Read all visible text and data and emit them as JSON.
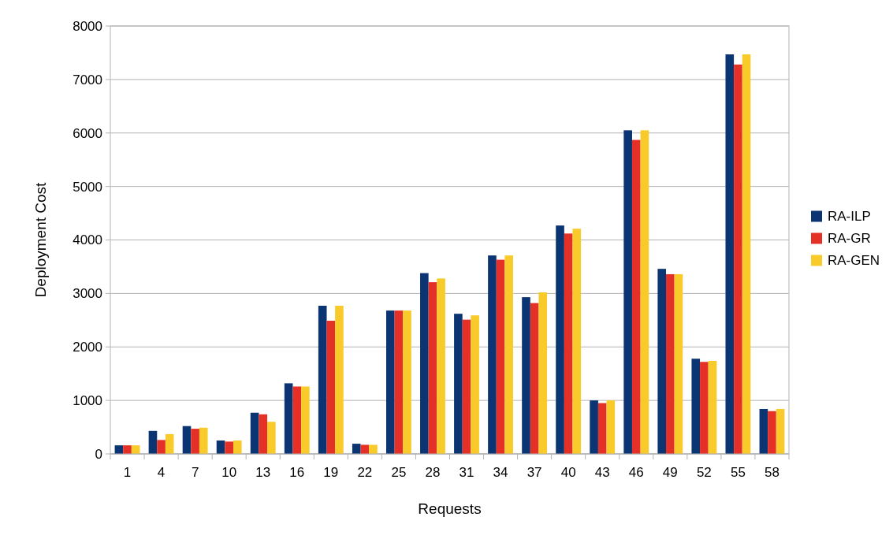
{
  "chart_data": {
    "type": "bar",
    "xlabel": "Requests",
    "ylabel": "Deployment Cost",
    "categories": [
      "1",
      "4",
      "7",
      "10",
      "13",
      "16",
      "19",
      "22",
      "25",
      "28",
      "31",
      "34",
      "37",
      "40",
      "43",
      "46",
      "49",
      "52",
      "55",
      "58"
    ],
    "series": [
      {
        "name": "RA-ILP",
        "color": "#0b3473",
        "values": [
          160,
          430,
          520,
          250,
          770,
          1320,
          2770,
          190,
          2680,
          3380,
          2620,
          3710,
          2930,
          4270,
          1000,
          6050,
          3460,
          1780,
          7470,
          840
        ]
      },
      {
        "name": "RA-GR",
        "color": "#e53027",
        "values": [
          160,
          260,
          470,
          230,
          740,
          1260,
          2490,
          170,
          2680,
          3210,
          2510,
          3630,
          2820,
          4120,
          950,
          5870,
          3360,
          1720,
          7280,
          800
        ]
      },
      {
        "name": "RA-GEN",
        "color": "#f9cb2a",
        "values": [
          160,
          370,
          490,
          250,
          600,
          1260,
          2770,
          170,
          2680,
          3280,
          2590,
          3710,
          3020,
          4210,
          1000,
          6050,
          3360,
          1740,
          7470,
          840
        ]
      }
    ],
    "ylim": [
      0,
      8000
    ],
    "yticks": [
      0,
      1000,
      2000,
      3000,
      4000,
      5000,
      6000,
      7000,
      8000
    ],
    "grid": "y",
    "legend": "right"
  }
}
